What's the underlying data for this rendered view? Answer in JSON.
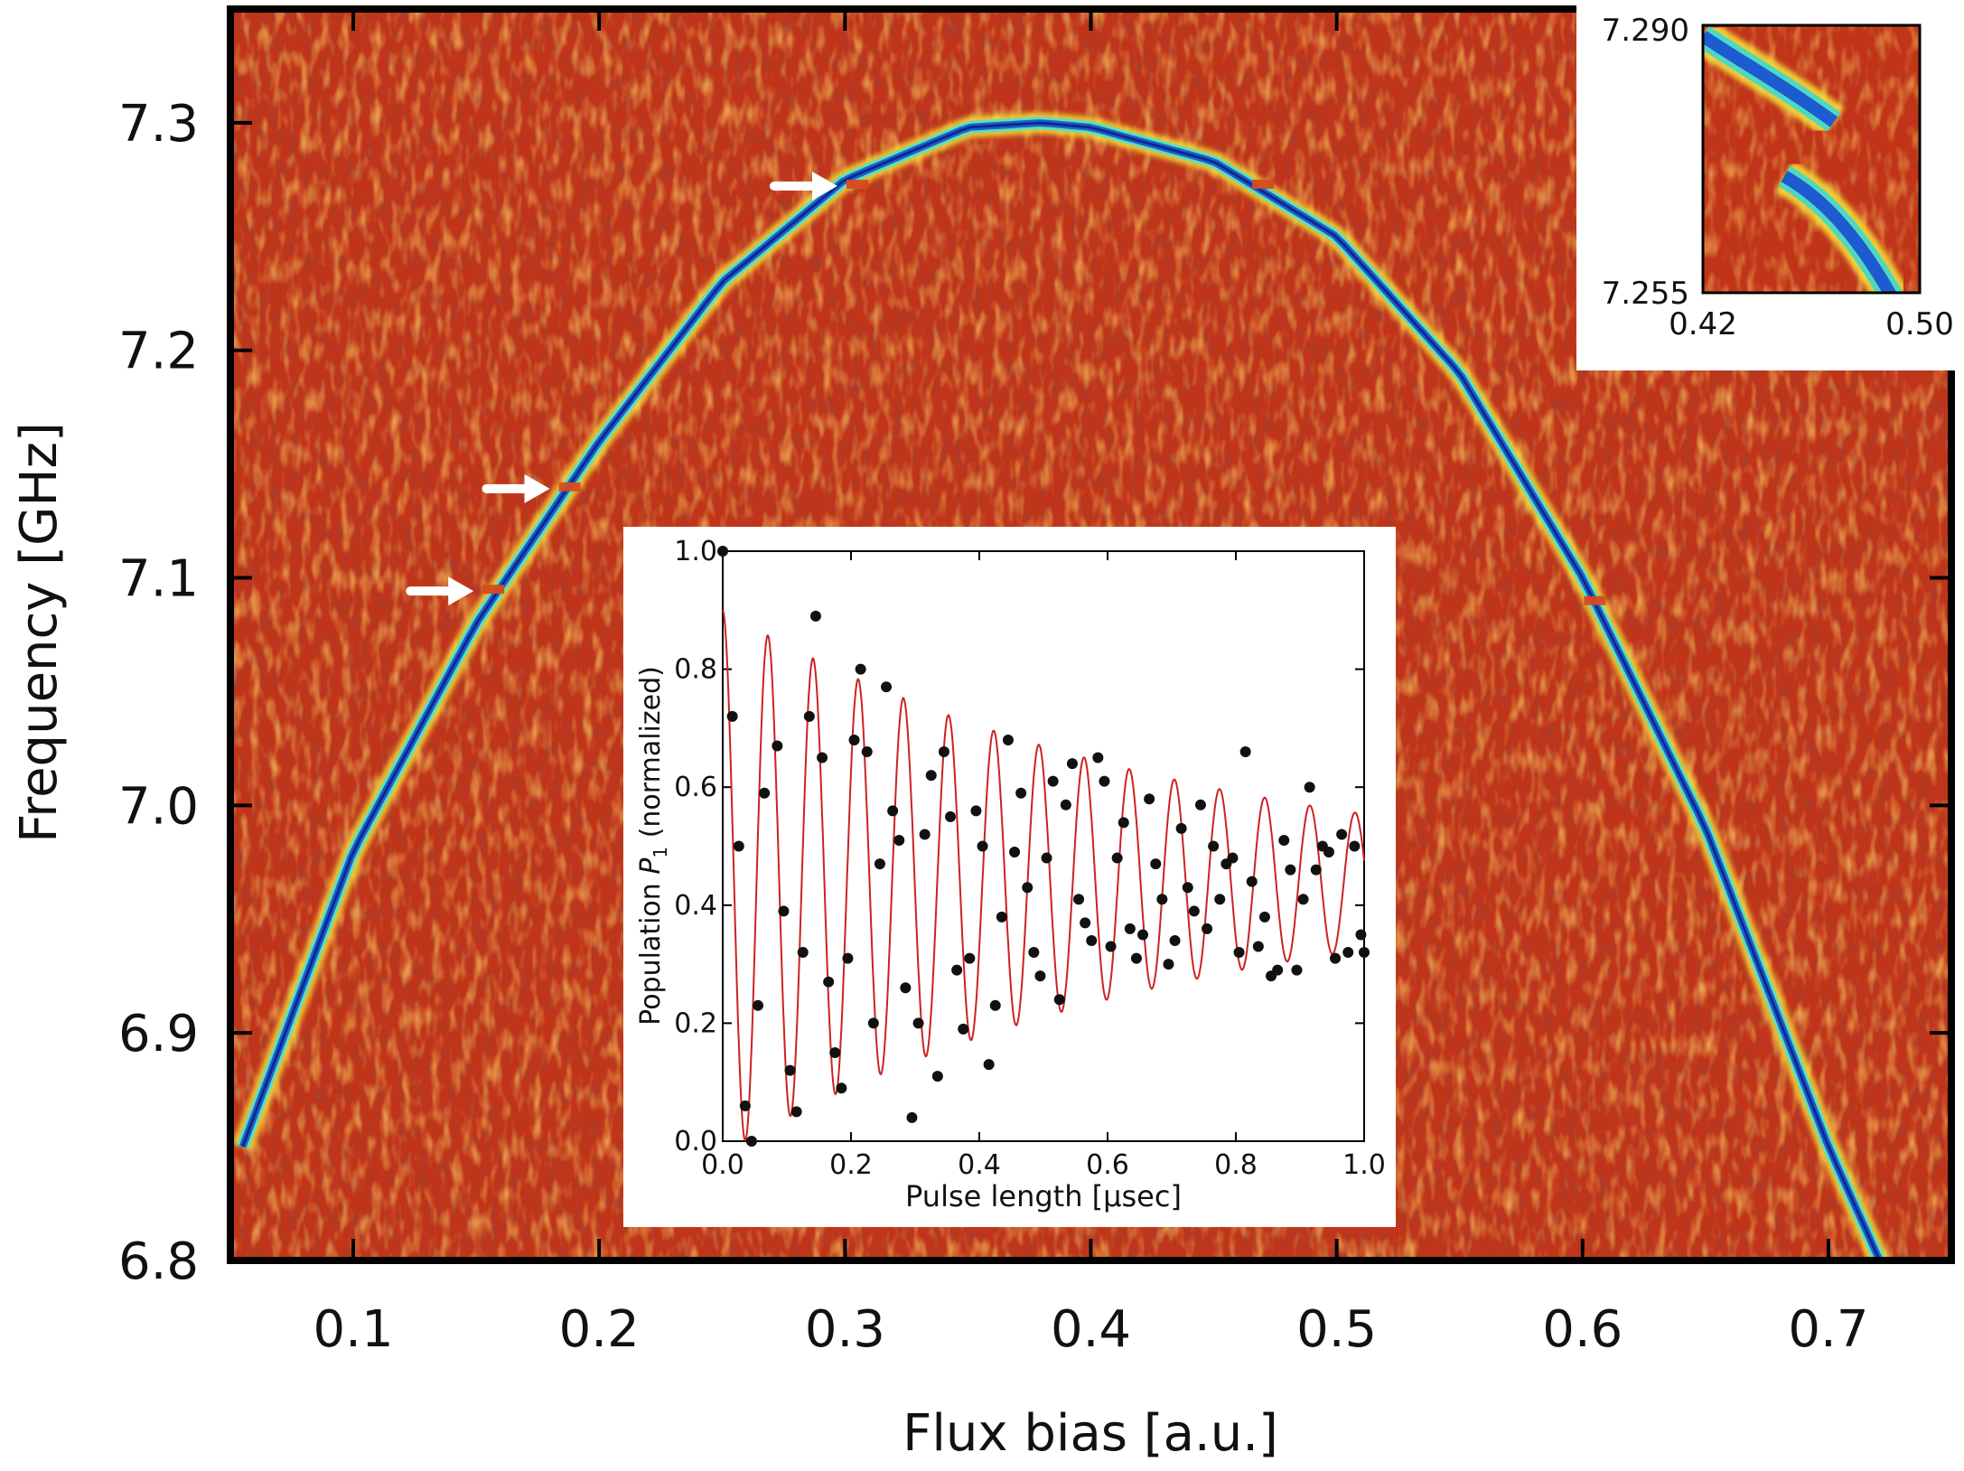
{
  "chart_data": [
    {
      "type": "heatmap",
      "xlabel": "Flux bias [a.u.]",
      "ylabel": "Frequency [GHz]",
      "xlim": [
        0.05,
        0.75
      ],
      "ylim": [
        6.8,
        7.35
      ],
      "xticks": [
        "0.1",
        "0.2",
        "0.3",
        "0.4",
        "0.5",
        "0.6",
        "0.7"
      ],
      "xtick_values": [
        0.1,
        0.2,
        0.3,
        0.4,
        0.5,
        0.6,
        0.7
      ],
      "yticks": [
        "6.8",
        "6.9",
        "7.0",
        "7.1",
        "7.2",
        "7.3"
      ],
      "ytick_values": [
        6.8,
        6.9,
        7.0,
        7.1,
        7.2,
        7.3
      ],
      "colormap": "jet",
      "background_color": "#c0351a",
      "grid": false,
      "spectral_line": {
        "flux": [
          0.055,
          0.1,
          0.15,
          0.2,
          0.25,
          0.3,
          0.35,
          0.38,
          0.4,
          0.45,
          0.5,
          0.55,
          0.6,
          0.65,
          0.7,
          0.725
        ],
        "frequency": [
          6.85,
          6.98,
          7.08,
          7.16,
          7.23,
          7.275,
          7.298,
          7.3,
          7.298,
          7.283,
          7.25,
          7.19,
          7.1,
          6.99,
          6.85,
          6.79
        ]
      },
      "anticrossings": [
        {
          "flux": 0.157,
          "frequency": 7.095,
          "arrow": true
        },
        {
          "flux": 0.188,
          "frequency": 7.14,
          "arrow": true
        },
        {
          "flux": 0.305,
          "frequency": 7.273,
          "arrow": true
        },
        {
          "flux": 0.47,
          "frequency": 7.273,
          "arrow": false
        },
        {
          "flux": 0.605,
          "frequency": 7.09,
          "arrow": false
        }
      ]
    },
    {
      "type": "heatmap",
      "xlim": [
        0.42,
        0.5
      ],
      "ylim": [
        7.255,
        7.29
      ],
      "xticks": [
        "0.42",
        "0.50"
      ],
      "yticks": [
        "7.290",
        "7.255"
      ],
      "colormap": "jet"
    },
    {
      "type": "scatter",
      "xlabel": "Pulse length [μsec]",
      "ylabel_prefix": "Population",
      "ylabel_var": "P",
      "ylabel_sub": "1",
      "ylabel_suffix": "(normalized)",
      "xlim": [
        0.0,
        1.0
      ],
      "ylim": [
        0.0,
        1.0
      ],
      "xticks": [
        "0.0",
        "0.2",
        "0.4",
        "0.6",
        "0.8",
        "1.0"
      ],
      "yticks": [
        "0.0",
        "0.2",
        "0.4",
        "0.6",
        "0.8",
        "1.0"
      ],
      "series": [
        {
          "kind": "points",
          "color": "#111111",
          "x": [
            0.0,
            0.015,
            0.025,
            0.035,
            0.045,
            0.055,
            0.065,
            0.085,
            0.095,
            0.105,
            0.115,
            0.125,
            0.135,
            0.145,
            0.155,
            0.165,
            0.175,
            0.185,
            0.195,
            0.205,
            0.215,
            0.225,
            0.235,
            0.245,
            0.255,
            0.265,
            0.275,
            0.285,
            0.295,
            0.305,
            0.315,
            0.325,
            0.335,
            0.345,
            0.355,
            0.365,
            0.375,
            0.385,
            0.395,
            0.405,
            0.415,
            0.425,
            0.435,
            0.445,
            0.455,
            0.465,
            0.475,
            0.485,
            0.495,
            0.505,
            0.515,
            0.525,
            0.535,
            0.545,
            0.555,
            0.565,
            0.575,
            0.585,
            0.595,
            0.605,
            0.615,
            0.625,
            0.635,
            0.645,
            0.655,
            0.665,
            0.675,
            0.685,
            0.695,
            0.705,
            0.715,
            0.725,
            0.735,
            0.745,
            0.755,
            0.765,
            0.775,
            0.785,
            0.795,
            0.805,
            0.815,
            0.825,
            0.835,
            0.845,
            0.855,
            0.865,
            0.875,
            0.885,
            0.895,
            0.905,
            0.915,
            0.925,
            0.935,
            0.945,
            0.955,
            0.965,
            0.975,
            0.985,
            0.995,
            1.0
          ],
          "y": [
            1.0,
            0.72,
            0.5,
            0.06,
            0.0,
            0.23,
            0.59,
            0.67,
            0.39,
            0.12,
            0.05,
            0.32,
            0.72,
            0.89,
            0.65,
            0.27,
            0.15,
            0.09,
            0.31,
            0.68,
            0.8,
            0.66,
            0.2,
            0.47,
            0.77,
            0.56,
            0.51,
            0.26,
            0.04,
            0.2,
            0.52,
            0.62,
            0.11,
            0.66,
            0.55,
            0.29,
            0.19,
            0.31,
            0.56,
            0.5,
            0.13,
            0.23,
            0.38,
            0.68,
            0.49,
            0.59,
            0.43,
            0.32,
            0.28,
            0.48,
            0.61,
            0.24,
            0.57,
            0.64,
            0.41,
            0.37,
            0.34,
            0.65,
            0.61,
            0.33,
            0.48,
            0.54,
            0.36,
            0.31,
            0.35,
            0.58,
            0.47,
            0.41,
            0.3,
            0.34,
            0.53,
            0.43,
            0.39,
            0.57,
            0.36,
            0.5,
            0.41,
            0.47,
            0.48,
            0.32,
            0.66,
            0.44,
            0.33,
            0.38,
            0.28,
            0.29,
            0.51,
            0.46,
            0.29,
            0.41,
            0.6,
            0.46,
            0.5,
            0.49,
            0.31,
            0.52,
            0.32,
            0.5,
            0.35,
            0.32
          ]
        },
        {
          "kind": "fit",
          "color": "#cc2222",
          "frequency_per_usec": 14.2,
          "decay_time_usec": 0.72,
          "offset": 0.44
        }
      ]
    }
  ]
}
